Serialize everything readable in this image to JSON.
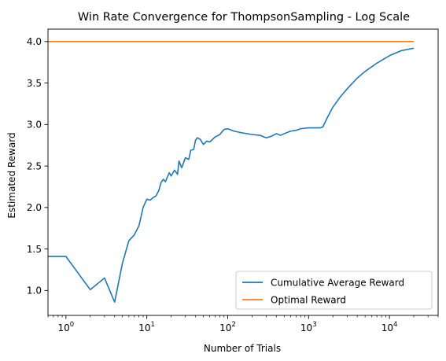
{
  "chart_data": {
    "type": "line",
    "title": "Win Rate Convergence for ThompsonSampling - Log Scale",
    "xlabel": "Number of Trials",
    "ylabel": "Estimated Reward",
    "xscale": "log",
    "xlim": [
      0.6,
      40000
    ],
    "ylim": [
      0.7,
      4.15
    ],
    "xticks": [
      {
        "value": 1,
        "base": "10",
        "exp": "0"
      },
      {
        "value": 10,
        "base": "10",
        "exp": "1"
      },
      {
        "value": 100,
        "base": "10",
        "exp": "2"
      },
      {
        "value": 1000,
        "base": "10",
        "exp": "3"
      },
      {
        "value": 10000,
        "base": "10",
        "exp": "4"
      }
    ],
    "yticks": [
      {
        "value": 1.0,
        "label": "1.0"
      },
      {
        "value": 1.5,
        "label": "1.5"
      },
      {
        "value": 2.0,
        "label": "2.0"
      },
      {
        "value": 2.5,
        "label": "2.5"
      },
      {
        "value": 3.0,
        "label": "3.0"
      },
      {
        "value": 3.5,
        "label": "3.5"
      },
      {
        "value": 4.0,
        "label": "4.0"
      }
    ],
    "grid": false,
    "legend_position": "lower-right",
    "series": [
      {
        "name": "Cumulative Average Reward",
        "color": "#1f77b4",
        "points": [
          [
            0.6,
            1.41
          ],
          [
            1,
            1.41
          ],
          [
            2,
            1.01
          ],
          [
            3,
            1.15
          ],
          [
            4,
            0.86
          ],
          [
            5,
            1.33
          ],
          [
            6,
            1.6
          ],
          [
            7,
            1.67
          ],
          [
            8,
            1.78
          ],
          [
            9,
            2.0
          ],
          [
            10,
            2.1
          ],
          [
            11,
            2.09
          ],
          [
            12,
            2.12
          ],
          [
            13,
            2.14
          ],
          [
            14,
            2.2
          ],
          [
            15,
            2.3
          ],
          [
            16,
            2.34
          ],
          [
            17,
            2.31
          ],
          [
            18,
            2.37
          ],
          [
            19,
            2.42
          ],
          [
            20,
            2.38
          ],
          [
            22,
            2.45
          ],
          [
            24,
            2.4
          ],
          [
            25,
            2.56
          ],
          [
            27,
            2.48
          ],
          [
            30,
            2.6
          ],
          [
            33,
            2.58
          ],
          [
            35,
            2.69
          ],
          [
            38,
            2.7
          ],
          [
            40,
            2.81
          ],
          [
            42,
            2.84
          ],
          [
            46,
            2.82
          ],
          [
            50,
            2.76
          ],
          [
            55,
            2.8
          ],
          [
            60,
            2.79
          ],
          [
            70,
            2.85
          ],
          [
            80,
            2.88
          ],
          [
            90,
            2.94
          ],
          [
            100,
            2.95
          ],
          [
            120,
            2.92
          ],
          [
            150,
            2.9
          ],
          [
            200,
            2.88
          ],
          [
            250,
            2.87
          ],
          [
            300,
            2.84
          ],
          [
            350,
            2.86
          ],
          [
            400,
            2.89
          ],
          [
            450,
            2.87
          ],
          [
            500,
            2.89
          ],
          [
            600,
            2.92
          ],
          [
            700,
            2.93
          ],
          [
            800,
            2.95
          ],
          [
            1000,
            2.96
          ],
          [
            1200,
            2.96
          ],
          [
            1400,
            2.96
          ],
          [
            1500,
            2.97
          ],
          [
            1700,
            3.08
          ],
          [
            2000,
            3.21
          ],
          [
            2500,
            3.34
          ],
          [
            3000,
            3.43
          ],
          [
            4000,
            3.56
          ],
          [
            5000,
            3.64
          ],
          [
            7000,
            3.74
          ],
          [
            10000,
            3.83
          ],
          [
            14000,
            3.89
          ],
          [
            20000,
            3.92
          ]
        ]
      },
      {
        "name": "Optimal Reward",
        "color": "#ff7f0e",
        "points": [
          [
            0.6,
            4.0
          ],
          [
            20000,
            4.0
          ]
        ]
      }
    ]
  }
}
